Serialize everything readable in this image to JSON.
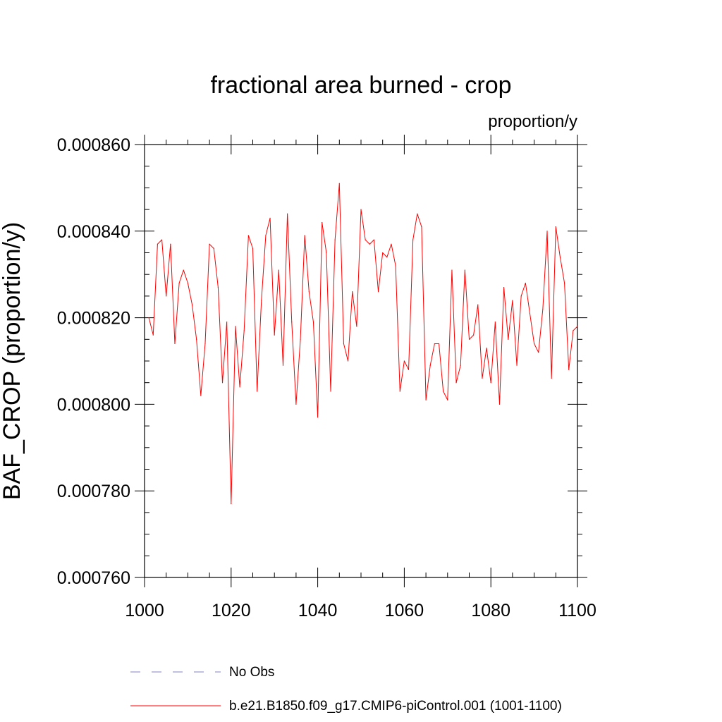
{
  "chart_data": {
    "type": "line",
    "title": "fractional area burned - crop",
    "units": "proportion/y",
    "ylabel": "BAF_CROP  (proportion/y)",
    "xlabel": "",
    "xlim": [
      1000,
      1100
    ],
    "ylim": [
      0.00076,
      0.00086
    ],
    "x_ticks": [
      1000,
      1020,
      1040,
      1060,
      1080,
      1100
    ],
    "x_tick_labels": [
      "1000",
      "1020",
      "1040",
      "1060",
      "1080",
      "1100"
    ],
    "y_ticks": [
      0.00076,
      0.00078,
      0.0008,
      0.00082,
      0.00084,
      0.00086
    ],
    "y_tick_labels": [
      "0.000760",
      "0.000780",
      "0.000800",
      "0.000820",
      "0.000840",
      "0.000860"
    ],
    "grid": false,
    "legend_position": "bottom",
    "series": [
      {
        "name": "No Obs",
        "color": "#8080c0",
        "style": "dashed",
        "values": []
      },
      {
        "name": "b.e21.B1850.f09_g17.CMIP6-piControl.001 (1001-1100)",
        "color": "#ff0000",
        "style": "solid",
        "x_start": 1001,
        "values": [
          0.00082,
          0.000816,
          0.000837,
          0.000838,
          0.000825,
          0.000837,
          0.000814,
          0.000828,
          0.000831,
          0.000828,
          0.000823,
          0.000815,
          0.000802,
          0.000814,
          0.000837,
          0.000836,
          0.000827,
          0.000805,
          0.000819,
          0.000777,
          0.000818,
          0.000804,
          0.000817,
          0.000839,
          0.000836,
          0.000803,
          0.000824,
          0.000839,
          0.000843,
          0.000816,
          0.000831,
          0.000809,
          0.000844,
          0.000819,
          0.0008,
          0.000815,
          0.000839,
          0.000826,
          0.000819,
          0.000797,
          0.000842,
          0.000835,
          0.000803,
          0.000838,
          0.000851,
          0.000814,
          0.00081,
          0.000826,
          0.000818,
          0.000845,
          0.000838,
          0.000837,
          0.000838,
          0.000826,
          0.000835,
          0.000834,
          0.000837,
          0.000832,
          0.000803,
          0.00081,
          0.000808,
          0.000838,
          0.000844,
          0.000841,
          0.000801,
          0.000809,
          0.000814,
          0.000814,
          0.000803,
          0.000801,
          0.000831,
          0.000805,
          0.000809,
          0.000831,
          0.000815,
          0.000816,
          0.000823,
          0.000806,
          0.000813,
          0.000805,
          0.000819,
          0.0008,
          0.000827,
          0.000815,
          0.000824,
          0.000809,
          0.000825,
          0.000828,
          0.000821,
          0.000814,
          0.000812,
          0.000822,
          0.00084,
          0.000806,
          0.000841,
          0.000834,
          0.000828,
          0.000808,
          0.000817,
          0.000818
        ]
      }
    ]
  }
}
